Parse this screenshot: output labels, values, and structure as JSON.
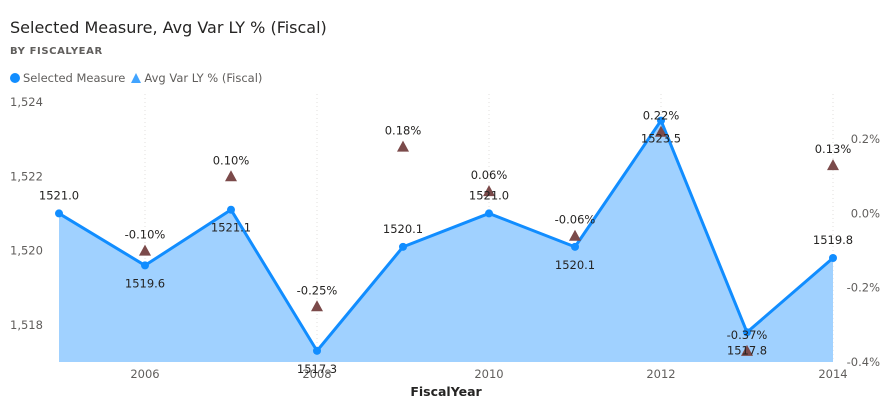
{
  "header": {
    "title": "Selected Measure, Avg Var LY % (Fiscal)",
    "subtitle": "BY FISCALYEAR"
  },
  "chart_data": {
    "type": "line",
    "title": "Selected Measure, Avg Var LY % (Fiscal)",
    "subtitle": "BY FISCALYEAR",
    "xlabel": "FiscalYear",
    "ylabel": "",
    "x": [
      2005,
      2006,
      2007,
      2008,
      2009,
      2010,
      2011,
      2012,
      2013,
      2014
    ],
    "xlim": [
      2005,
      2014
    ],
    "x_ticks": [
      2006,
      2008,
      2010,
      2012,
      2014
    ],
    "x_tick_labels": [
      "2006",
      "2008",
      "2010",
      "2012",
      "2014"
    ],
    "y_left": {
      "lim": [
        1517,
        1524
      ],
      "ticks": [
        1518,
        1520,
        1522,
        1524
      ],
      "tick_labels": [
        "1,518",
        "1,520",
        "1,522",
        "1,524"
      ]
    },
    "y_right": {
      "lim": [
        -0.4,
        0.3
      ],
      "ticks": [
        -0.4,
        -0.2,
        0.0,
        0.2
      ],
      "tick_labels": [
        "-0.4%",
        "-0.2%",
        "0.0%",
        "0.2%"
      ]
    },
    "grid": true,
    "legend_position": "top-left",
    "series": [
      {
        "name": "Selected Measure",
        "kind": "line-area",
        "axis": "left",
        "color": "#118DFF",
        "fill_color": "#A0D1FF",
        "values": [
          1521.0,
          1519.6,
          1521.1,
          1517.3,
          1520.1,
          1521.0,
          1520.1,
          1523.5,
          1517.8,
          1519.8
        ],
        "labels": [
          "1521.0",
          "1519.6",
          "1521.1",
          "1517.3",
          "1520.1",
          "1521.0",
          "1520.1",
          "1523.5",
          "1517.8",
          "1519.8"
        ]
      },
      {
        "name": "Avg Var LY % (Fiscal)",
        "kind": "marker",
        "marker": "triangle",
        "axis": "right",
        "color": "#744EC2",
        "values": [
          null,
          -0.1,
          0.1,
          -0.25,
          0.18,
          0.06,
          -0.06,
          0.22,
          -0.37,
          0.13
        ],
        "labels": [
          "",
          "-0.10%",
          "0.10%",
          "-0.25%",
          "0.18%",
          "0.06%",
          "-0.06%",
          "0.22%",
          "-0.37%",
          "0.13%"
        ]
      }
    ]
  },
  "colors": {
    "triangle_fill": "#7B4A4A",
    "legend_triangle": "#41A4FF"
  }
}
